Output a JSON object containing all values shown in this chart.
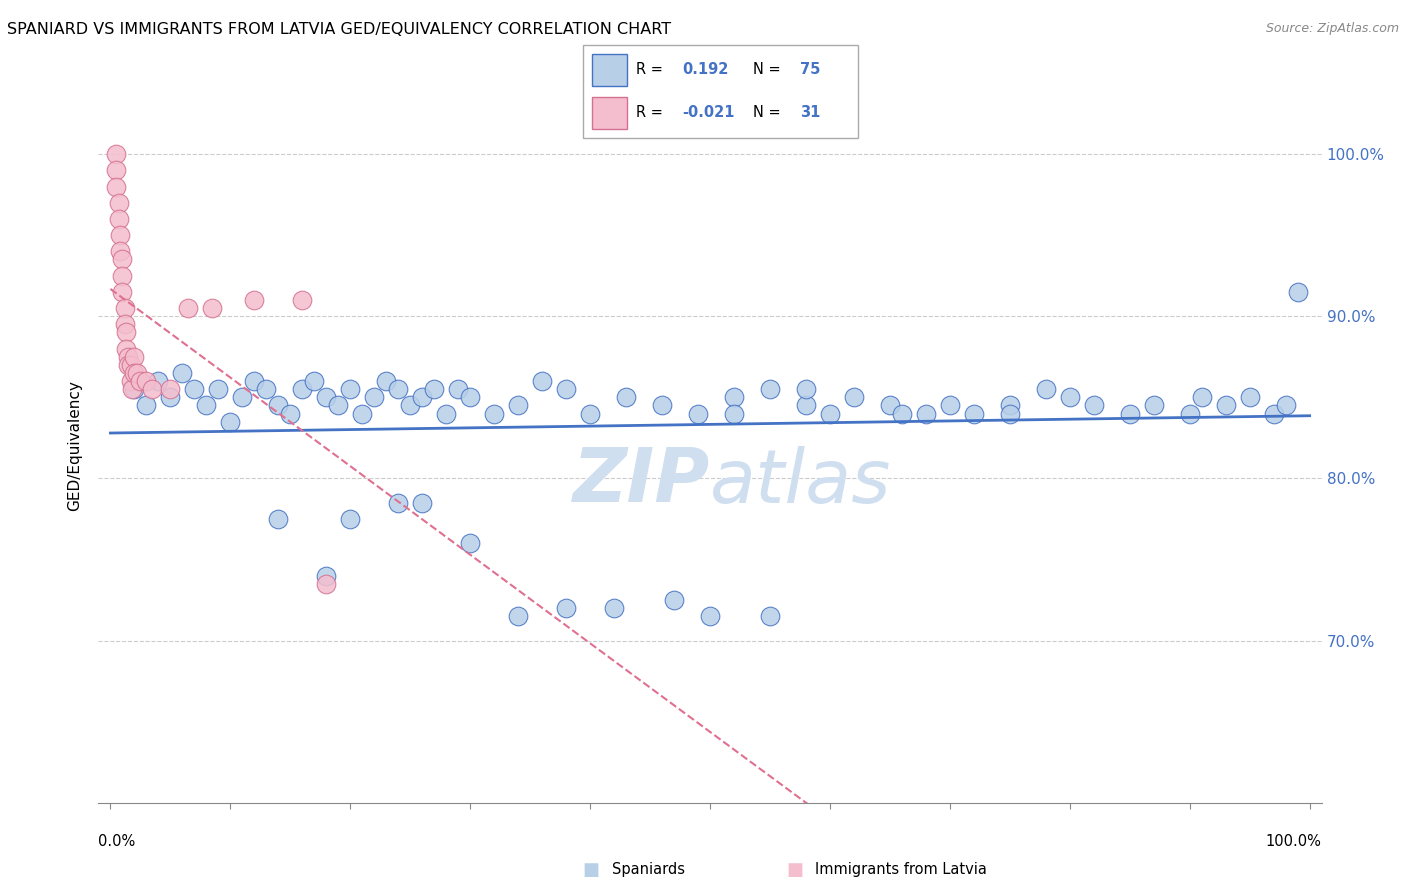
{
  "title": "SPANIARD VS IMMIGRANTS FROM LATVIA GED/EQUIVALENCY CORRELATION CHART",
  "source": "Source: ZipAtlas.com",
  "ylabel": "GED/Equivalency",
  "y_tick_vals": [
    0.7,
    0.8,
    0.9,
    1.0
  ],
  "y_tick_labels": [
    "70.0%",
    "80.0%",
    "90.0%",
    "100.0%"
  ],
  "xlim": [
    -0.01,
    1.01
  ],
  "ylim": [
    0.6,
    1.04
  ],
  "legend_blue_r": "0.192",
  "legend_blue_n": "75",
  "legend_pink_r": "-0.021",
  "legend_pink_n": "31",
  "legend_blue_label": "Spaniards",
  "legend_pink_label": "Immigrants from Latvia",
  "blue_fill": "#b8cfe8",
  "blue_edge": "#4472c4",
  "pink_fill": "#f4bece",
  "pink_edge": "#d47090",
  "blue_line": "#4472c4",
  "pink_line": "#e07090",
  "watermark_color": "#d0dff0",
  "blue_x": [
    0.02,
    0.03,
    0.04,
    0.05,
    0.06,
    0.07,
    0.08,
    0.09,
    0.1,
    0.11,
    0.12,
    0.13,
    0.14,
    0.15,
    0.16,
    0.17,
    0.18,
    0.19,
    0.2,
    0.21,
    0.22,
    0.23,
    0.24,
    0.25,
    0.26,
    0.27,
    0.28,
    0.29,
    0.3,
    0.32,
    0.34,
    0.36,
    0.38,
    0.4,
    0.43,
    0.46,
    0.49,
    0.52,
    0.52,
    0.55,
    0.58,
    0.58,
    0.6,
    0.62,
    0.65,
    0.66,
    0.68,
    0.7,
    0.72,
    0.75,
    0.75,
    0.78,
    0.8,
    0.82,
    0.85,
    0.87,
    0.9,
    0.91,
    0.93,
    0.95,
    0.97,
    0.98,
    0.99,
    0.14,
    0.18,
    0.2,
    0.24,
    0.26,
    0.3,
    0.34,
    0.38,
    0.42,
    0.47,
    0.5,
    0.55
  ],
  "blue_y": [
    0.855,
    0.845,
    0.86,
    0.85,
    0.865,
    0.855,
    0.845,
    0.855,
    0.835,
    0.85,
    0.86,
    0.855,
    0.845,
    0.84,
    0.855,
    0.86,
    0.85,
    0.845,
    0.855,
    0.84,
    0.85,
    0.86,
    0.855,
    0.845,
    0.85,
    0.855,
    0.84,
    0.855,
    0.85,
    0.84,
    0.845,
    0.86,
    0.855,
    0.84,
    0.85,
    0.845,
    0.84,
    0.85,
    0.84,
    0.855,
    0.845,
    0.855,
    0.84,
    0.85,
    0.845,
    0.84,
    0.84,
    0.845,
    0.84,
    0.845,
    0.84,
    0.855,
    0.85,
    0.845,
    0.84,
    0.845,
    0.84,
    0.85,
    0.845,
    0.85,
    0.84,
    0.845,
    0.915,
    0.775,
    0.74,
    0.775,
    0.785,
    0.785,
    0.76,
    0.715,
    0.72,
    0.72,
    0.725,
    0.715,
    0.715
  ],
  "pink_x": [
    0.005,
    0.005,
    0.005,
    0.007,
    0.007,
    0.008,
    0.008,
    0.01,
    0.01,
    0.01,
    0.012,
    0.012,
    0.013,
    0.013,
    0.015,
    0.015,
    0.017,
    0.017,
    0.018,
    0.02,
    0.02,
    0.022,
    0.025,
    0.03,
    0.035,
    0.05,
    0.065,
    0.085,
    0.12,
    0.16,
    0.18
  ],
  "pink_y": [
    1.0,
    0.99,
    0.98,
    0.97,
    0.96,
    0.95,
    0.94,
    0.935,
    0.925,
    0.915,
    0.905,
    0.895,
    0.89,
    0.88,
    0.875,
    0.87,
    0.87,
    0.86,
    0.855,
    0.875,
    0.865,
    0.865,
    0.86,
    0.86,
    0.855,
    0.855,
    0.905,
    0.905,
    0.91,
    0.91,
    0.735
  ]
}
